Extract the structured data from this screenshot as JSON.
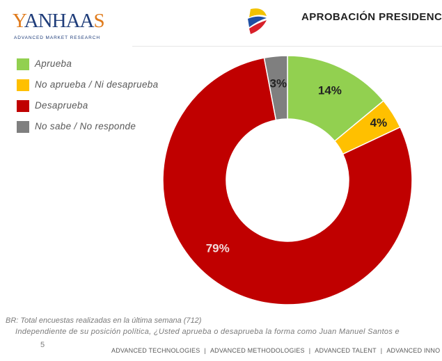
{
  "header": {
    "logo_text": "YANHAAS",
    "logo_tagline": "ADVANCED MARKET RESEARCH",
    "flag_icon": "colombia-flag-icon",
    "title": "APROBACIÓN PRESIDENCI"
  },
  "colors": {
    "aprueba": "#92d050",
    "no_aprueba_ni": "#ffc000",
    "desaprueba": "#c00000",
    "ns_nr": "#7f7f7f"
  },
  "chart_data": {
    "type": "pie",
    "donut": true,
    "categories": [
      "Aprueba",
      "No aprueba / Ni desaprueba",
      "Desaprueba",
      "No sabe /  No responde"
    ],
    "values": [
      14,
      4,
      79,
      3
    ],
    "labels": [
      "14%",
      "4%",
      "79%",
      "3%"
    ],
    "colors": [
      "#92d050",
      "#ffc000",
      "#c00000",
      "#7f7f7f"
    ],
    "legend_position": "top-left"
  },
  "footer": {
    "base_note": "BR: Total encuestas realizadas en la última semana (712)",
    "question": "Independiente de su posición política, ¿Usted aprueba o desaprueba la forma como Juan Manuel Santos e",
    "page_number": "5",
    "links": [
      "ADVANCED TECHNOLOGIES",
      "ADVANCED METHODOLOGIES",
      "ADVANCED TALENT",
      "ADVANCED INNO"
    ],
    "separator": "|"
  }
}
